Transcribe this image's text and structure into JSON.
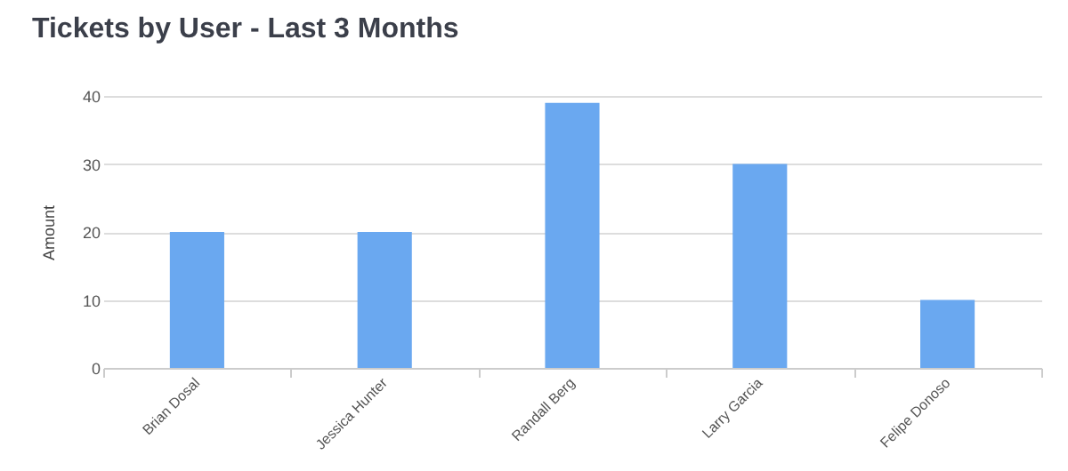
{
  "chart_data": {
    "type": "bar",
    "title": "Tickets by User - Last 3 Months",
    "ylabel": "Amount",
    "categories": [
      "Brian Dosal",
      "Jessica Hunter",
      "Randall Berg",
      "Larry Garcia",
      "Felipe Donoso"
    ],
    "values": [
      20,
      20,
      39,
      30,
      10
    ],
    "color": "#6aa8f0",
    "ylim": [
      0,
      40
    ],
    "yticks": [
      0,
      10,
      20,
      30,
      40
    ],
    "grid": "y"
  }
}
